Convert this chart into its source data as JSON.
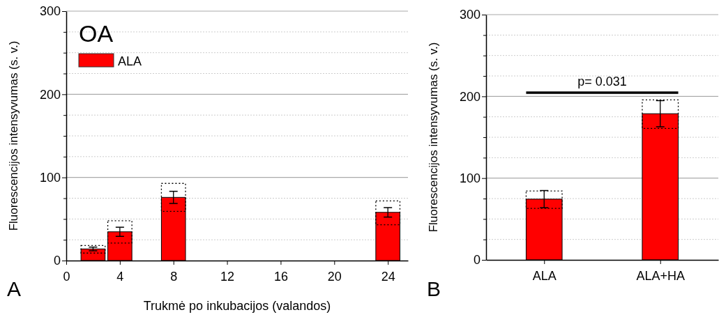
{
  "chart_data": [
    {
      "type": "bar",
      "title": "OA",
      "xlabel": "Trukmė po inkubacijos (valandos)",
      "ylabel": "Fluorescencijos intensyvumas (s. v.)",
      "x": [
        2,
        4,
        8,
        24
      ],
      "series": [
        {
          "name": "ALA",
          "color": "#ff0000",
          "values": [
            14,
            34.6,
            76,
            58
          ],
          "errors": [
            2.2,
            5.5,
            7.3,
            5.7
          ]
        },
        {
          "type": "bar",
          "color": "#000000",
          "line_style": "dotted",
          "base": [
            9,
            21,
            59.2,
            43
          ],
          "values": [
            9.2,
            26.8,
            33.6,
            28.8
          ]
        }
      ],
      "xlim": [
        0,
        25.5
      ],
      "xticks": [
        0,
        4,
        8,
        12,
        16,
        20,
        24
      ],
      "ylim": [
        0,
        300
      ],
      "yticks": [
        0,
        {
          "value": 25,
          "label": null
        },
        {
          "value": 50,
          "label": null
        },
        {
          "value": 75,
          "label": null
        },
        100,
        {
          "value": 125,
          "label": null
        },
        {
          "value": 150,
          "label": null
        },
        {
          "value": 175,
          "label": null
        },
        200,
        {
          "value": 225,
          "label": null
        },
        {
          "value": 250,
          "label": null
        },
        {
          "value": 275,
          "label": null
        },
        300
      ],
      "grid": "y",
      "legend": "top left",
      "annotations": [
        "A"
      ]
    },
    {
      "type": "bar",
      "ylabel": "Fluorescencijos intensyvumas (s. v.)",
      "categories": [
        "ALA",
        "ALA+HA"
      ],
      "series": [
        {
          "color": "#ff0000",
          "values": [
            74.3,
            178.8
          ],
          "errors": [
            10.5,
            16
          ]
        },
        {
          "type": "bar",
          "color": "#000000",
          "line_style": "dotted",
          "base": [
            62.9,
            160.8
          ],
          "values": [
            21.4,
            34.9
          ]
        }
      ],
      "ylim": [
        0,
        300
      ],
      "yticks": [
        0,
        {
          "value": 25,
          "label": null
        },
        {
          "value": 50,
          "label": null
        },
        {
          "value": 75,
          "label": null
        },
        100,
        {
          "value": 125,
          "label": null
        },
        {
          "value": 150,
          "label": null
        },
        {
          "value": 175,
          "label": null
        },
        200,
        {
          "value": 225,
          "label": null
        },
        {
          "value": 250,
          "label": null
        },
        {
          "value": 275,
          "label": null
        },
        300
      ],
      "grid": "y",
      "annotations": [
        "p= 0.031",
        "B"
      ]
    }
  ]
}
